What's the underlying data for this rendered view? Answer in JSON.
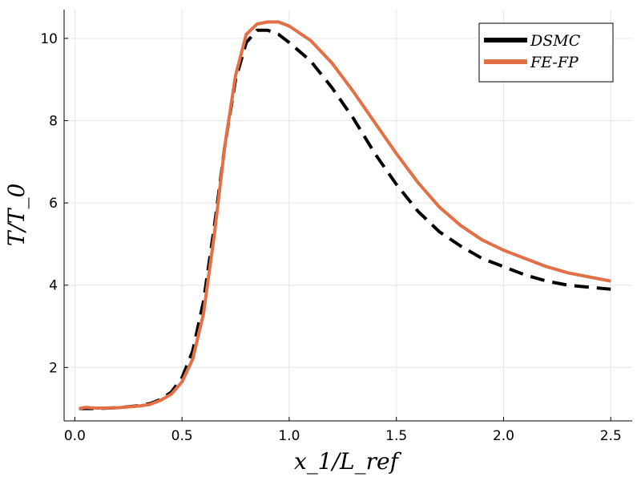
{
  "chart_data": {
    "type": "line",
    "title": "",
    "xlabel": "x_1/L_ref",
    "ylabel": "T/T_0",
    "xlim": [
      -0.05,
      2.6
    ],
    "ylim": [
      0.7,
      10.7
    ],
    "xticks": [
      0.0,
      0.5,
      1.0,
      1.5,
      2.0,
      2.5
    ],
    "xtick_labels": [
      "0.0",
      "0.5",
      "1.0",
      "1.5",
      "2.0",
      "2.5"
    ],
    "yticks": [
      2,
      4,
      6,
      8,
      10
    ],
    "ytick_labels": [
      "2",
      "4",
      "6",
      "8",
      "10"
    ],
    "grid": true,
    "legend": "top-right",
    "series": [
      {
        "name": "DSMC",
        "color": "#000000",
        "style": "dashed",
        "x": [
          0.02,
          0.05,
          0.1,
          0.2,
          0.3,
          0.35,
          0.4,
          0.45,
          0.5,
          0.55,
          0.6,
          0.65,
          0.7,
          0.75,
          0.8,
          0.85,
          0.9,
          0.95,
          1.0,
          1.1,
          1.2,
          1.3,
          1.4,
          1.5,
          1.6,
          1.7,
          1.8,
          1.9,
          2.0,
          2.1,
          2.2,
          2.3,
          2.4,
          2.5
        ],
        "y": [
          1.0,
          1.0,
          1.0,
          1.02,
          1.07,
          1.12,
          1.22,
          1.4,
          1.75,
          2.4,
          3.6,
          5.4,
          7.4,
          9.0,
          9.9,
          10.2,
          10.2,
          10.1,
          9.9,
          9.45,
          8.8,
          8.05,
          7.2,
          6.45,
          5.8,
          5.3,
          4.95,
          4.65,
          4.45,
          4.25,
          4.1,
          4.0,
          3.95,
          3.9
        ]
      },
      {
        "name": "FE-FP",
        "color": "#e26f46",
        "style": "solid",
        "x": [
          0.02,
          0.05,
          0.1,
          0.2,
          0.3,
          0.35,
          0.4,
          0.45,
          0.5,
          0.55,
          0.6,
          0.65,
          0.7,
          0.75,
          0.8,
          0.85,
          0.9,
          0.95,
          1.0,
          1.1,
          1.2,
          1.3,
          1.4,
          1.5,
          1.6,
          1.7,
          1.8,
          1.9,
          2.0,
          2.1,
          2.2,
          2.3,
          2.4,
          2.5
        ],
        "y": [
          1.0,
          1.03,
          1.01,
          1.02,
          1.06,
          1.1,
          1.2,
          1.35,
          1.65,
          2.2,
          3.3,
          5.2,
          7.4,
          9.1,
          10.1,
          10.35,
          10.4,
          10.4,
          10.3,
          9.95,
          9.4,
          8.7,
          7.95,
          7.2,
          6.5,
          5.9,
          5.45,
          5.1,
          4.85,
          4.65,
          4.45,
          4.3,
          4.2,
          4.1
        ]
      }
    ]
  }
}
